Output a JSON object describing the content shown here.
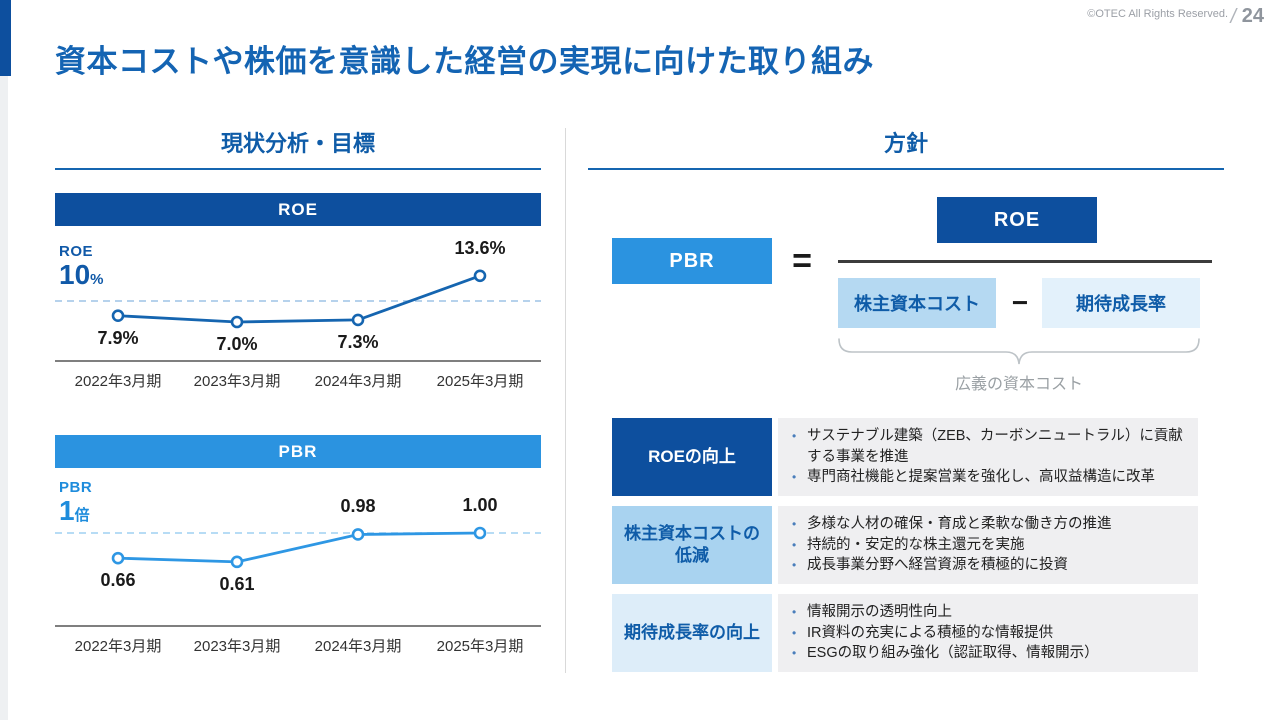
{
  "header": {
    "copyright": "©OTEC All Rights Reserved.",
    "slash": "/",
    "page_number": "24",
    "title": "資本コストや株価を意識した経営の実現に向けた取り組み"
  },
  "left_section": {
    "heading": "現状分析・目標"
  },
  "right_section": {
    "heading": "方針"
  },
  "chart_data": {
    "roe": {
      "type": "line",
      "title": "ROE",
      "categories": [
        "2022年3月期",
        "2023年3月期",
        "2024年3月期",
        "2025年3月期"
      ],
      "values": [
        7.9,
        7.0,
        7.3,
        13.6
      ],
      "labels": [
        "7.9%",
        "7.0%",
        "7.3%",
        "13.6%"
      ],
      "ylabel": "ROE (%)",
      "target": 10,
      "target_series": "ROE",
      "target_value": "10",
      "target_unit": "%",
      "grid": false,
      "color": "#1565b0",
      "dash_color": "#9dc3e6"
    },
    "pbr": {
      "type": "line",
      "title": "PBR",
      "categories": [
        "2022年3月期",
        "2023年3月期",
        "2024年3月期",
        "2025年3月期"
      ],
      "values": [
        0.66,
        0.61,
        0.98,
        1.0
      ],
      "labels": [
        "0.66",
        "0.61",
        "0.98",
        "1.00"
      ],
      "ylabel": "PBR (倍)",
      "target": 1.0,
      "target_series": "PBR",
      "target_value": "1",
      "target_unit": "倍",
      "grid": false,
      "color": "#2e97e4",
      "dash_color": "#9fd0f2"
    }
  },
  "formula": {
    "pbr_label": "PBR",
    "equals": "=",
    "roe_label": "ROE",
    "denominator_left": "株主資本コスト",
    "minus": "−",
    "denominator_right": "期待成長率",
    "brace_label": "広義の資本コスト"
  },
  "policy_rows": [
    {
      "label": "ROEの向上",
      "bullets": [
        "サステナブル建築（ZEB、カーボンニュートラル）に貢献する事業を推進",
        "専門商社機能と提案営業を強化し、高収益構造に改革"
      ]
    },
    {
      "label": "株主資本コストの低減",
      "bullets": [
        "多様な人材の確保・育成と柔軟な働き方の推進",
        "持続的・安定的な株主還元を実施",
        "成長事業分野へ経営資源を積極的に投資"
      ]
    },
    {
      "label": "期待成長率の向上",
      "bullets": [
        "情報開示の透明性向上",
        "IR資料の充実による積極的な情報提供",
        "ESGの取り組み強化（認証取得、情報開示）"
      ]
    }
  ],
  "colors": {
    "dark_blue": "#0d4f9e",
    "title_blue": "#1464b3",
    "mid_blue": "#2b93e0",
    "light_blue_box": "#b5d9f2",
    "lighter_blue_box": "#e3f1fb",
    "panel_gray": "#efeff1",
    "gray_text": "#9aa0a4"
  }
}
